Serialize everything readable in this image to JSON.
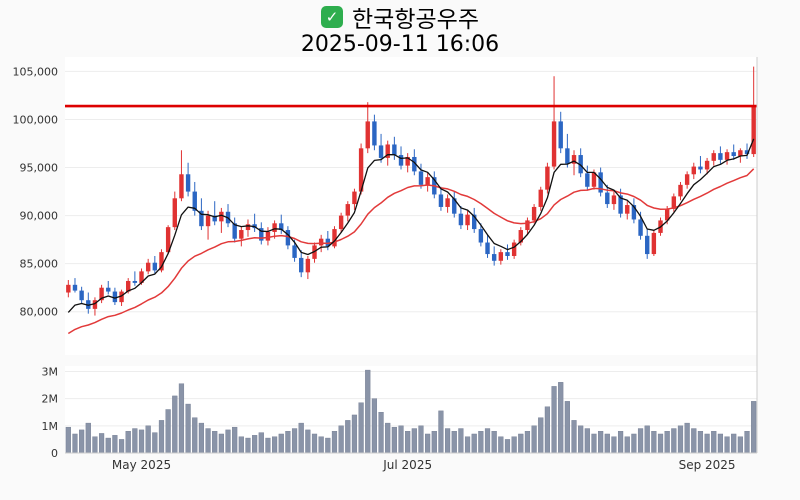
{
  "header": {
    "check_icon": "✓",
    "title": "한국항공우주",
    "timestamp": "2025-09-11 16:06"
  },
  "chart_data": {
    "type": "candlestick",
    "title": "한국항공우주",
    "as_of": "2025-09-11 16:06",
    "legend_position": "none",
    "grid": true,
    "price_axis": {
      "tick_values": [
        105000,
        100000,
        95000,
        90000,
        85000,
        80000
      ],
      "tick_labels": [
        "105,000",
        "100,000",
        "95,000",
        "90,000",
        "85,000",
        "80,000"
      ],
      "min": 75500,
      "max": 106500
    },
    "volume_axis": {
      "tick_values": [
        3000000,
        2000000,
        1000000,
        0
      ],
      "tick_labels": [
        "3M",
        "2M",
        "1M",
        "0"
      ],
      "max": 3200000
    },
    "x_axis": {
      "labels": [
        {
          "text": "May 2025",
          "index": 11
        },
        {
          "text": "Jul 2025",
          "index": 51
        },
        {
          "text": "Sep 2025",
          "index": 96
        }
      ]
    },
    "last_price_line": {
      "value": 101400,
      "color": "#dd0000"
    },
    "moving_averages": {
      "fast": {
        "period": 5,
        "seed": 78500,
        "color": "#111111"
      },
      "slow": {
        "period": 20,
        "seed": 77200,
        "color": "#e23a3a"
      }
    },
    "colors": {
      "up": "#e03232",
      "down": "#2b66c3",
      "volume": "#8a94a8",
      "volume_edge": "#707a90",
      "axis_text": "#333333",
      "grid": "#ededed",
      "border": "#cccccc",
      "plot_bg": "#ffffff"
    },
    "candles": [
      [
        82000,
        83300,
        81500,
        82800
      ],
      [
        82800,
        83500,
        82000,
        82200
      ],
      [
        82200,
        82600,
        80800,
        81200
      ],
      [
        81200,
        82000,
        79800,
        80300
      ],
      [
        80300,
        81500,
        79600,
        81200
      ],
      [
        81200,
        82800,
        80900,
        82500
      ],
      [
        82500,
        83200,
        81800,
        82100
      ],
      [
        82100,
        82500,
        80700,
        81000
      ],
      [
        81000,
        82300,
        80600,
        82100
      ],
      [
        82100,
        83500,
        81900,
        83200
      ],
      [
        83200,
        84200,
        82700,
        83000
      ],
      [
        83000,
        84500,
        82800,
        84200
      ],
      [
        84200,
        85500,
        83900,
        85100
      ],
      [
        85100,
        85800,
        84000,
        84300
      ],
      [
        84300,
        86500,
        84100,
        86200
      ],
      [
        86200,
        89000,
        86000,
        88800
      ],
      [
        88800,
        92500,
        88500,
        91800
      ],
      [
        91800,
        96800,
        91500,
        94300
      ],
      [
        94300,
        95500,
        92000,
        92500
      ],
      [
        92500,
        93500,
        90000,
        90500
      ],
      [
        90500,
        91800,
        88500,
        88900
      ],
      [
        88900,
        90500,
        87500,
        90000
      ],
      [
        90000,
        91500,
        89000,
        89400
      ],
      [
        89400,
        90800,
        88200,
        90400
      ],
      [
        90400,
        91200,
        88800,
        89200
      ],
      [
        89200,
        89800,
        87200,
        87600
      ],
      [
        87600,
        88900,
        86800,
        88500
      ],
      [
        88500,
        89600,
        87800,
        89100
      ],
      [
        89100,
        90200,
        88300,
        88700
      ],
      [
        88700,
        89300,
        87000,
        87400
      ],
      [
        87400,
        88800,
        86900,
        88300
      ],
      [
        88300,
        89500,
        87600,
        89200
      ],
      [
        89200,
        90100,
        88100,
        88500
      ],
      [
        88500,
        88900,
        86500,
        86900
      ],
      [
        86900,
        87500,
        85200,
        85600
      ],
      [
        85600,
        86400,
        83600,
        84100
      ],
      [
        84100,
        85800,
        83400,
        85500
      ],
      [
        85500,
        87200,
        85100,
        86900
      ],
      [
        86900,
        88000,
        86200,
        87600
      ],
      [
        87600,
        88400,
        86400,
        86800
      ],
      [
        86800,
        88900,
        86600,
        88600
      ],
      [
        88600,
        90300,
        88200,
        90000
      ],
      [
        90000,
        91500,
        89400,
        91200
      ],
      [
        91200,
        92800,
        90600,
        92500
      ],
      [
        92500,
        97500,
        92200,
        97000
      ],
      [
        97000,
        101800,
        96500,
        99800
      ],
      [
        99800,
        100500,
        96800,
        97300
      ],
      [
        97300,
        98500,
        95500,
        96000
      ],
      [
        96000,
        97800,
        95200,
        97400
      ],
      [
        97400,
        98200,
        95800,
        96300
      ],
      [
        96300,
        97200,
        94800,
        95200
      ],
      [
        95200,
        96500,
        94500,
        96100
      ],
      [
        96100,
        96900,
        94200,
        94600
      ],
      [
        94600,
        95400,
        92800,
        93200
      ],
      [
        93200,
        94500,
        92500,
        94000
      ],
      [
        94000,
        94600,
        91800,
        92200
      ],
      [
        92200,
        93000,
        90500,
        90900
      ],
      [
        90900,
        92200,
        90300,
        91800
      ],
      [
        91800,
        92500,
        89800,
        90200
      ],
      [
        90200,
        91000,
        88600,
        89000
      ],
      [
        89000,
        90500,
        88500,
        90100
      ],
      [
        90100,
        90800,
        88200,
        88600
      ],
      [
        88600,
        89200,
        86800,
        87200
      ],
      [
        87200,
        88000,
        85600,
        86000
      ],
      [
        86000,
        86800,
        84800,
        85300
      ],
      [
        85300,
        86500,
        84900,
        86200
      ],
      [
        86200,
        87000,
        85400,
        85800
      ],
      [
        85800,
        87500,
        85500,
        87200
      ],
      [
        87200,
        88800,
        86900,
        88500
      ],
      [
        88500,
        89800,
        88000,
        89500
      ],
      [
        89500,
        91200,
        89200,
        90900
      ],
      [
        90900,
        93000,
        90500,
        92700
      ],
      [
        92700,
        95500,
        92300,
        95100
      ],
      [
        95100,
        104500,
        94800,
        99800
      ],
      [
        99800,
        100800,
        96500,
        97000
      ],
      [
        97000,
        98500,
        95000,
        95400
      ],
      [
        95400,
        96800,
        94200,
        96300
      ],
      [
        96300,
        97000,
        94000,
        94400
      ],
      [
        94400,
        95200,
        92600,
        93000
      ],
      [
        93000,
        94800,
        92700,
        94500
      ],
      [
        94500,
        95000,
        92000,
        92400
      ],
      [
        92400,
        93200,
        90800,
        91200
      ],
      [
        91200,
        92500,
        90600,
        92100
      ],
      [
        92100,
        92800,
        89800,
        90200
      ],
      [
        90200,
        91500,
        89600,
        91100
      ],
      [
        91100,
        91800,
        89200,
        89600
      ],
      [
        89600,
        90400,
        87500,
        87900
      ],
      [
        87900,
        88600,
        85500,
        86000
      ],
      [
        86000,
        88500,
        85800,
        88200
      ],
      [
        88200,
        89800,
        87900,
        89500
      ],
      [
        89500,
        91000,
        89100,
        90700
      ],
      [
        90700,
        92300,
        90400,
        92000
      ],
      [
        92000,
        93500,
        91600,
        93200
      ],
      [
        93200,
        94600,
        92800,
        94300
      ],
      [
        94300,
        95500,
        93800,
        95100
      ],
      [
        95100,
        96200,
        94400,
        94800
      ],
      [
        94800,
        96000,
        94300,
        95700
      ],
      [
        95700,
        96800,
        95200,
        96500
      ],
      [
        96500,
        97200,
        95400,
        95800
      ],
      [
        95800,
        96900,
        95300,
        96600
      ],
      [
        96600,
        97400,
        95800,
        96200
      ],
      [
        96200,
        97000,
        95500,
        96800
      ],
      [
        96800,
        97500,
        95900,
        96400
      ],
      [
        96400,
        105500,
        96100,
        101400
      ]
    ],
    "volumes": [
      950000,
      700000,
      850000,
      1100000,
      600000,
      720000,
      550000,
      650000,
      500000,
      800000,
      900000,
      850000,
      1000000,
      750000,
      1200000,
      1600000,
      2100000,
      2550000,
      1800000,
      1300000,
      1100000,
      900000,
      800000,
      700000,
      850000,
      950000,
      600000,
      550000,
      650000,
      750000,
      550000,
      600000,
      700000,
      800000,
      900000,
      1100000,
      850000,
      700000,
      600000,
      550000,
      800000,
      1000000,
      1200000,
      1400000,
      1850000,
      3050000,
      2000000,
      1500000,
      1100000,
      950000,
      1000000,
      800000,
      900000,
      1000000,
      700000,
      800000,
      1550000,
      900000,
      800000,
      900000,
      600000,
      700000,
      800000,
      900000,
      800000,
      600000,
      500000,
      600000,
      700000,
      800000,
      1000000,
      1300000,
      1700000,
      2450000,
      2600000,
      1900000,
      1200000,
      1000000,
      900000,
      700000,
      800000,
      700000,
      600000,
      800000,
      600000,
      700000,
      900000,
      1000000,
      800000,
      700000,
      800000,
      900000,
      1000000,
      1100000,
      900000,
      800000,
      700000,
      800000,
      700000,
      600000,
      700000,
      600000,
      800000,
      1900000
    ]
  }
}
